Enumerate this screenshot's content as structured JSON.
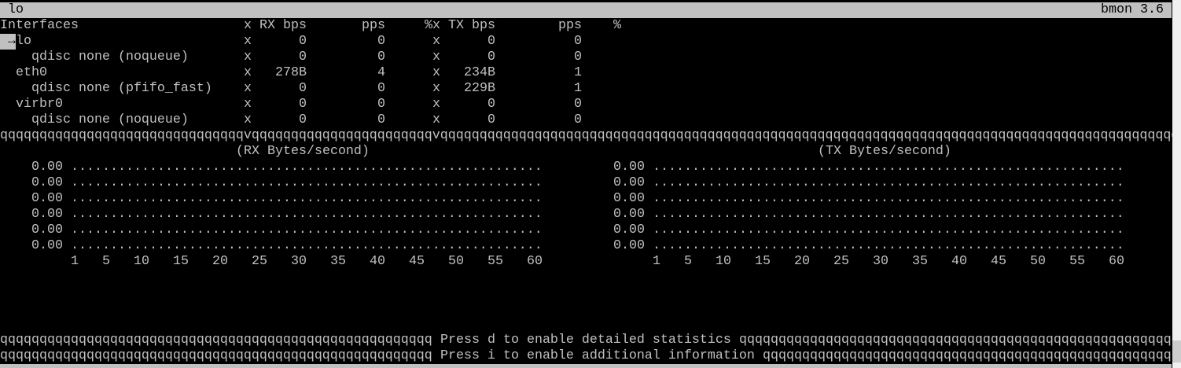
{
  "title_bar": {
    "interface": "lo",
    "app": "bmon 3.6"
  },
  "table": {
    "headers": {
      "name": "Interfaces",
      "sep1": "x",
      "rx_bps": "RX bps",
      "rx_pps": "pps",
      "rx_pct": "%x",
      "tx_bps": "TX bps",
      "tx_pps": "pps",
      "tx_pct": "%"
    },
    "rows": [
      {
        "name": "lo",
        "indent": 1,
        "selected": true,
        "marker": "→",
        "sep": "x",
        "rx_bps": "0",
        "rx_pps": "0",
        "sep2": "x",
        "tx_bps": "0",
        "tx_pps": "0"
      },
      {
        "name": "qdisc none (noqueue)",
        "indent": 4,
        "sep": "x",
        "rx_bps": "0",
        "rx_pps": "0",
        "sep2": "x",
        "tx_bps": "0",
        "tx_pps": "0"
      },
      {
        "name": "eth0",
        "indent": 2,
        "sep": "x",
        "rx_bps": "278B",
        "rx_pps": "4",
        "sep2": "x",
        "tx_bps": "234B",
        "tx_pps": "1"
      },
      {
        "name": "qdisc none (pfifo_fast)",
        "indent": 4,
        "sep": "x",
        "rx_bps": "0",
        "rx_pps": "0",
        "sep2": "x",
        "tx_bps": "229B",
        "tx_pps": "1"
      },
      {
        "name": "virbr0",
        "indent": 2,
        "sep": "x",
        "rx_bps": "0",
        "rx_pps": "0",
        "sep2": "x",
        "tx_bps": "0",
        "tx_pps": "0"
      },
      {
        "name": "qdisc none (noqueue)",
        "indent": 4,
        "sep": "x",
        "rx_bps": "0",
        "rx_pps": "0",
        "sep2": "x",
        "tx_bps": "0",
        "tx_pps": "0"
      }
    ]
  },
  "separator_char": "q",
  "separator_tee": "v",
  "graphs": [
    {
      "title": "(RX Bytes/second)",
      "y_labels": [
        "0.00",
        "0.00",
        "0.00",
        "0.00",
        "0.00",
        "0.00"
      ],
      "x_ticks": [
        "1",
        "5",
        "10",
        "15",
        "20",
        "25",
        "30",
        "35",
        "40",
        "45",
        "50",
        "55",
        "60"
      ],
      "empty_char": "."
    },
    {
      "title": "(TX Bytes/second)",
      "y_labels": [
        "0.00",
        "0.00",
        "0.00",
        "0.00",
        "0.00",
        "0.00"
      ],
      "x_ticks": [
        "1",
        "5",
        "10",
        "15",
        "20",
        "25",
        "30",
        "35",
        "40",
        "45",
        "50",
        "55",
        "60"
      ],
      "empty_char": "."
    }
  ],
  "hints": [
    "Press d to enable detailed statistics",
    "Press i to enable additional information"
  ]
}
